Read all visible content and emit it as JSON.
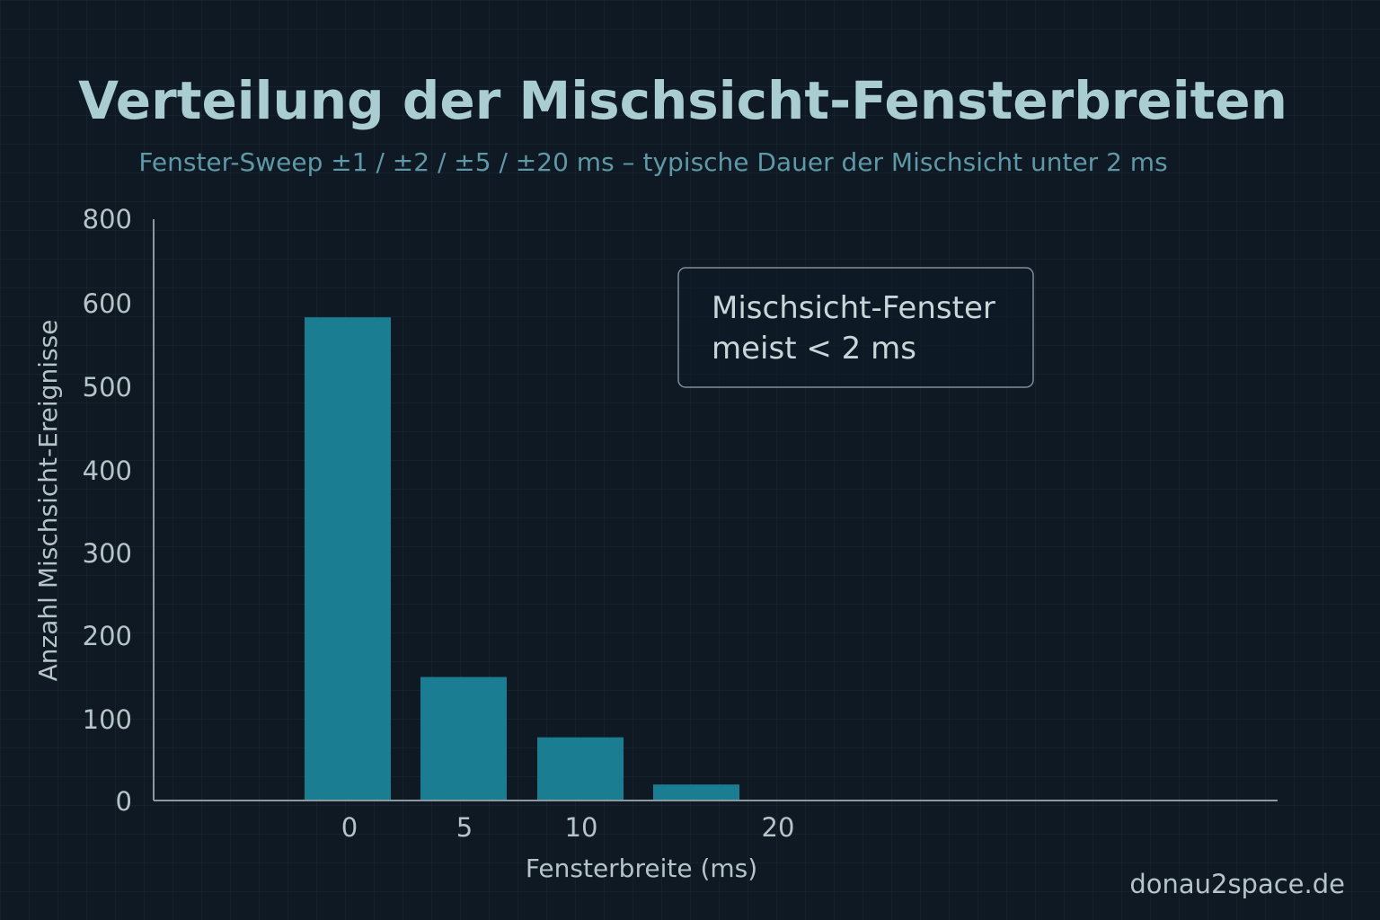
{
  "chart_data": {
    "type": "bar",
    "title": "Verteilung der Mischsicht-Fensterbreiten",
    "subtitle": "Fenster-Sweep ±1 / ±2 / ±5 / ±20 ms – typische Dauer der Mischsicht unter 2 ms",
    "xlabel": "Fensterbreite (ms)",
    "ylabel": "Anzahl Mischsicht-Ereignisse",
    "x_ticks": [
      "0",
      "5",
      "10",
      "20"
    ],
    "y_ticks": [
      "0",
      "100",
      "200",
      "300",
      "400",
      "500",
      "600",
      "800"
    ],
    "ylim": [
      0,
      800
    ],
    "values": [
      665,
      170,
      87,
      22
    ],
    "bar_color": "#1b7d92",
    "grid": false,
    "annotation": {
      "line1": "Mischsicht-Fenster",
      "line2": "meist < 2 ms"
    }
  },
  "watermark": "donau2space.de",
  "colors": {
    "background": "#0e1924",
    "title": "#a9cdd1",
    "subtitle": "#5f98a6",
    "axis": "#8a9aa0",
    "text": "#b5c4c8"
  }
}
